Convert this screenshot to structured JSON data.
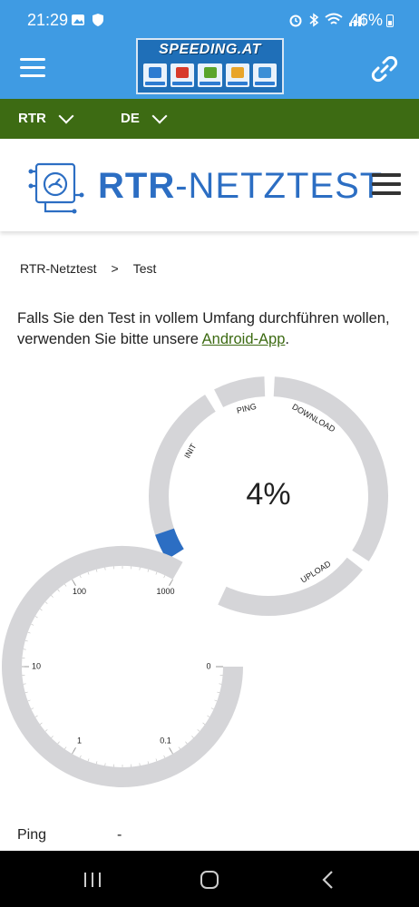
{
  "status_bar": {
    "time": "21:29",
    "battery": "46%",
    "icons_left": [
      "image-icon",
      "shield-icon"
    ],
    "icons_right": [
      "alarm-icon",
      "bluetooth-icon",
      "wifi-icon",
      "signal-icon"
    ]
  },
  "app_bar": {
    "logo_text": "SPEEDING.AT",
    "logo_tiles": [
      "INTERNET",
      "FESTNETZ",
      "TELEFON",
      "IPTV",
      "TARIFE"
    ],
    "color": "#3f9be3"
  },
  "lang_bar": {
    "selector1": "RTR",
    "selector2": "DE",
    "color": "#3d6b13"
  },
  "site": {
    "title_bold": "RTR",
    "title_rest": "-NETZTEST",
    "accent": "#2c6ec3"
  },
  "breadcrumb": {
    "home": "RTR-Netztest",
    "separator": ">",
    "current": "Test"
  },
  "intro": {
    "text_before": "Falls Sie den Test in vollem Umfang durchführen wollen, verwenden Sie bitte unsere",
    "link": "Android-App",
    "text_after": "."
  },
  "progress_gauge": {
    "percent_label": "4%",
    "progress": 0.04,
    "phases": [
      "INIT",
      "PING",
      "DOWNLOAD",
      "UPLOAD"
    ]
  },
  "speed_gauge": {
    "ticks": [
      "1000",
      "100",
      "10",
      "1",
      "0.1",
      "0"
    ]
  },
  "results": {
    "ping_label": "Ping",
    "ping_value": "-"
  }
}
